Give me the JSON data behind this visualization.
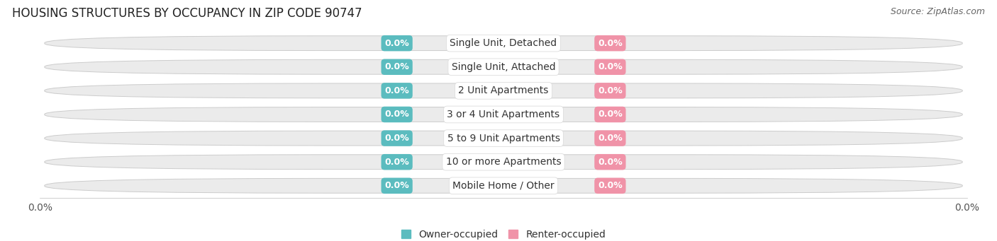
{
  "title": "HOUSING STRUCTURES BY OCCUPANCY IN ZIP CODE 90747",
  "source": "Source: ZipAtlas.com",
  "categories": [
    "Single Unit, Detached",
    "Single Unit, Attached",
    "2 Unit Apartments",
    "3 or 4 Unit Apartments",
    "5 to 9 Unit Apartments",
    "10 or more Apartments",
    "Mobile Home / Other"
  ],
  "owner_values": [
    0.0,
    0.0,
    0.0,
    0.0,
    0.0,
    0.0,
    0.0
  ],
  "renter_values": [
    0.0,
    0.0,
    0.0,
    0.0,
    0.0,
    0.0,
    0.0
  ],
  "owner_color": "#5bbcbf",
  "renter_color": "#f093a8",
  "bar_bg_color": "#ebebeb",
  "bar_border_color": "#cccccc",
  "label_bg_color": "#ffffff",
  "title_fontsize": 12,
  "source_fontsize": 9,
  "badge_fontsize": 9,
  "cat_fontsize": 10,
  "legend_fontsize": 10,
  "tick_fontsize": 10,
  "background_color": "#ffffff",
  "bar_height": 0.62,
  "xlim_left": "0.0%",
  "xlim_right": "0.0%"
}
